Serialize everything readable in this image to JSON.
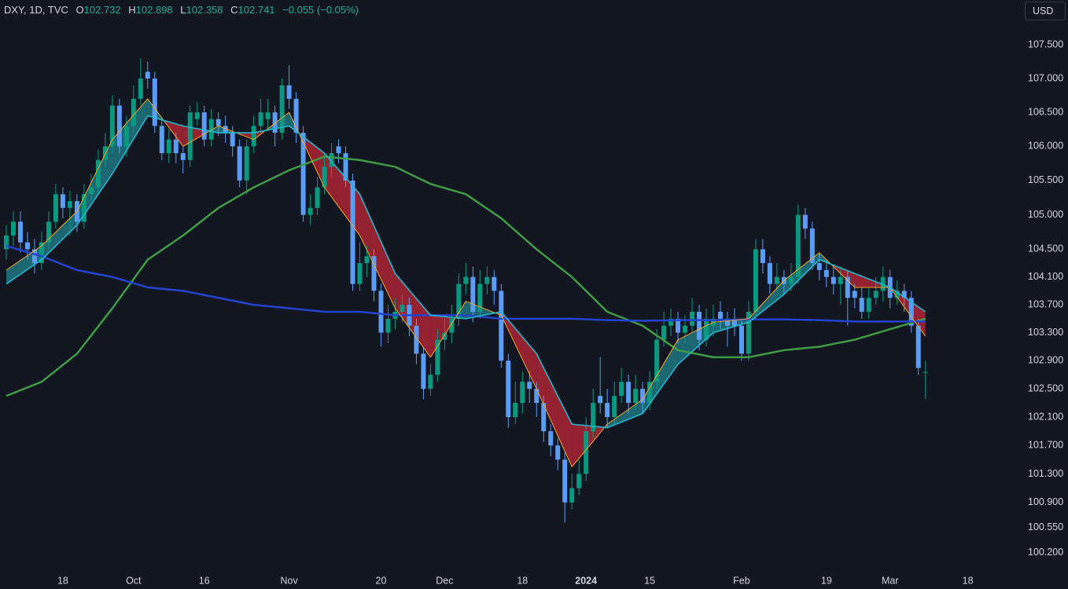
{
  "chart_data": {
    "type": "candlestick",
    "title": "DXY, 1D, TVC",
    "ohlc_labels": [
      "O",
      "H",
      "L",
      "C"
    ],
    "change_label": "−0.055 (−0.05%)",
    "currency": "USD",
    "log_scale": true,
    "grid": false,
    "up_color": "#089981",
    "down_color": "#5b9cf6",
    "ylim": [
      99.97,
      108.17
    ],
    "yticks": [
      {
        "value": 107.5,
        "label": "107.500"
      },
      {
        "value": 107.0,
        "label": "107.000"
      },
      {
        "value": 106.5,
        "label": "106.500"
      },
      {
        "value": 106.0,
        "label": "106.000"
      },
      {
        "value": 105.5,
        "label": "105.500"
      },
      {
        "value": 105.0,
        "label": "105.000"
      },
      {
        "value": 104.5,
        "label": "104.500"
      },
      {
        "value": 104.1,
        "label": "104.100"
      },
      {
        "value": 103.7,
        "label": "103.700"
      },
      {
        "value": 103.3,
        "label": "103.300"
      },
      {
        "value": 102.9,
        "label": "102.900"
      },
      {
        "value": 102.5,
        "label": "102.500"
      },
      {
        "value": 102.1,
        "label": "102.100"
      },
      {
        "value": 101.7,
        "label": "101.700"
      },
      {
        "value": 101.3,
        "label": "101.300"
      },
      {
        "value": 100.9,
        "label": "100.900"
      },
      {
        "value": 100.55,
        "label": "100.550"
      },
      {
        "value": 100.2,
        "label": "100.200"
      }
    ],
    "xticks": [
      {
        "value": "2023-09-18",
        "label": "18"
      },
      {
        "value": "2023-10-02",
        "label": "Oct"
      },
      {
        "value": "2023-10-16",
        "label": "16"
      },
      {
        "value": "2023-11-01",
        "label": "Nov"
      },
      {
        "value": "2023-11-20",
        "label": "20"
      },
      {
        "value": "2023-12-01",
        "label": "Dec"
      },
      {
        "value": "2023-12-18",
        "label": "18"
      },
      {
        "value": "2024-01-02",
        "label": "2024"
      },
      {
        "value": "2024-01-15",
        "label": "15"
      },
      {
        "value": "2024-02-01",
        "label": "Feb"
      },
      {
        "value": "2024-02-19",
        "label": "19"
      },
      {
        "value": "2024-03-01",
        "label": "Mar"
      },
      {
        "value": "2024-03-18",
        "label": "18"
      }
    ],
    "x": [
      "2023-09-06",
      "2023-09-07",
      "2023-09-08",
      "2023-09-11",
      "2023-09-12",
      "2023-09-13",
      "2023-09-14",
      "2023-09-15",
      "2023-09-18",
      "2023-09-19",
      "2023-09-20",
      "2023-09-21",
      "2023-09-22",
      "2023-09-25",
      "2023-09-26",
      "2023-09-27",
      "2023-09-28",
      "2023-09-29",
      "2023-10-02",
      "2023-10-03",
      "2023-10-04",
      "2023-10-05",
      "2023-10-06",
      "2023-10-09",
      "2023-10-10",
      "2023-10-11",
      "2023-10-12",
      "2023-10-13",
      "2023-10-16",
      "2023-10-17",
      "2023-10-18",
      "2023-10-19",
      "2023-10-20",
      "2023-10-23",
      "2023-10-24",
      "2023-10-25",
      "2023-10-26",
      "2023-10-27",
      "2023-10-30",
      "2023-10-31",
      "2023-11-01",
      "2023-11-02",
      "2023-11-03",
      "2023-11-06",
      "2023-11-07",
      "2023-11-08",
      "2023-11-09",
      "2023-11-10",
      "2023-11-13",
      "2023-11-14",
      "2023-11-15",
      "2023-11-16",
      "2023-11-17",
      "2023-11-20",
      "2023-11-21",
      "2023-11-22",
      "2023-11-23",
      "2023-11-24",
      "2023-11-27",
      "2023-11-28",
      "2023-11-29",
      "2023-11-30",
      "2023-12-01",
      "2023-12-04",
      "2023-12-05",
      "2023-12-06",
      "2023-12-07",
      "2023-12-08",
      "2023-12-11",
      "2023-12-12",
      "2023-12-13",
      "2023-12-14",
      "2023-12-15",
      "2023-12-18",
      "2023-12-19",
      "2023-12-20",
      "2023-12-21",
      "2023-12-22",
      "2023-12-26",
      "2023-12-27",
      "2023-12-28",
      "2023-12-29",
      "2024-01-02",
      "2024-01-03",
      "2024-01-04",
      "2024-01-05",
      "2024-01-08",
      "2024-01-09",
      "2024-01-10",
      "2024-01-11",
      "2024-01-12",
      "2024-01-15",
      "2024-01-16",
      "2024-01-17",
      "2024-01-18",
      "2024-01-19",
      "2024-01-22",
      "2024-01-23",
      "2024-01-24",
      "2024-01-25",
      "2024-01-26",
      "2024-01-29",
      "2024-01-30",
      "2024-01-31",
      "2024-02-01",
      "2024-02-02",
      "2024-02-05",
      "2024-02-06",
      "2024-02-07",
      "2024-02-08",
      "2024-02-09",
      "2024-02-12",
      "2024-02-13",
      "2024-02-14",
      "2024-02-15",
      "2024-02-16",
      "2024-02-19",
      "2024-02-20",
      "2024-02-21",
      "2024-02-22",
      "2024-02-23",
      "2024-02-26",
      "2024-02-27",
      "2024-02-28",
      "2024-02-29",
      "2024-03-01",
      "2024-03-04",
      "2024-03-05",
      "2024-03-06",
      "2024-03-07",
      "2024-03-08"
    ],
    "open": [
      104.5,
      104.7,
      104.9,
      104.6,
      104.5,
      104.3,
      104.6,
      104.9,
      105.3,
      105.1,
      105.2,
      104.9,
      105.3,
      105.4,
      105.8,
      106.0,
      106.6,
      106.0,
      106.3,
      106.7,
      107.1,
      107.0,
      106.3,
      105.9,
      106.1,
      105.9,
      105.8,
      106.4,
      106.5,
      106.1,
      106.4,
      106.3,
      106.2,
      106.0,
      105.5,
      106.0,
      106.3,
      106.4,
      106.5,
      106.2,
      106.9,
      106.7,
      106.2,
      105.0,
      105.1,
      105.4,
      105.7,
      106.0,
      105.9,
      105.5,
      104.0,
      104.3,
      104.4,
      103.9,
      103.3,
      103.5,
      103.6,
      103.7,
      103.4,
      103.0,
      102.5,
      102.7,
      103.2,
      103.3,
      103.5,
      104.0,
      104.1,
      103.6,
      104.0,
      104.1,
      103.9,
      102.9,
      102.1,
      102.3,
      102.6,
      102.5,
      102.3,
      101.9,
      101.7,
      101.5,
      100.9,
      101.1,
      101.3,
      101.9,
      102.4,
      102.3,
      102.1,
      102.4,
      102.6,
      102.3,
      102.5,
      102.3,
      102.6,
      103.2,
      103.4,
      103.5,
      103.3,
      103.4,
      103.6,
      103.2,
      103.4,
      103.6,
      103.5,
      103.5,
      103.4,
      103.0,
      103.6,
      104.5,
      104.3,
      104.0,
      104.1,
      104.0,
      104.1,
      105.0,
      104.8,
      104.3,
      104.2,
      104.1,
      104.0,
      104.1,
      103.9,
      103.8,
      103.6,
      103.8,
      103.9,
      104.1,
      103.8,
      103.9,
      103.8,
      103.4,
      102.732
    ],
    "high": [
      104.85,
      105.05,
      105.05,
      104.75,
      104.65,
      104.75,
      105.05,
      105.45,
      105.4,
      105.35,
      105.3,
      105.45,
      105.6,
      105.95,
      106.2,
      106.75,
      106.7,
      106.45,
      106.9,
      107.3,
      107.25,
      107.1,
      106.4,
      106.25,
      106.2,
      106.0,
      106.6,
      106.65,
      106.6,
      106.55,
      106.5,
      106.45,
      106.3,
      106.1,
      106.1,
      106.45,
      106.7,
      106.7,
      106.6,
      107.0,
      107.2,
      106.8,
      106.3,
      105.3,
      105.55,
      105.9,
      106.05,
      106.1,
      106.0,
      105.6,
      104.6,
      104.55,
      104.5,
      104.0,
      103.7,
      103.8,
      103.85,
      103.8,
      103.5,
      103.1,
      102.85,
      103.35,
      103.5,
      103.7,
      104.15,
      104.3,
      104.25,
      104.2,
      104.25,
      104.2,
      104.0,
      103.0,
      102.6,
      102.75,
      102.75,
      102.6,
      102.4,
      102.0,
      101.8,
      101.6,
      101.3,
      101.5,
      102.1,
      102.5,
      102.95,
      102.5,
      102.6,
      102.8,
      102.7,
      102.7,
      102.6,
      102.75,
      103.35,
      103.6,
      103.65,
      103.6,
      103.55,
      103.8,
      103.7,
      103.65,
      103.7,
      103.75,
      103.6,
      103.65,
      103.5,
      103.75,
      104.65,
      104.65,
      104.4,
      104.3,
      104.2,
      104.3,
      105.15,
      105.1,
      104.9,
      104.45,
      104.35,
      104.25,
      104.25,
      104.2,
      104.0,
      103.95,
      103.95,
      104.1,
      104.25,
      104.2,
      104.05,
      104.0,
      103.9,
      103.5,
      102.898
    ],
    "low": [
      104.35,
      104.55,
      104.45,
      104.35,
      104.15,
      104.2,
      104.5,
      104.8,
      104.95,
      104.7,
      104.75,
      104.8,
      105.2,
      105.3,
      105.7,
      105.9,
      105.9,
      105.85,
      106.2,
      106.6,
      106.85,
      106.2,
      105.8,
      105.75,
      105.75,
      105.6,
      105.7,
      106.3,
      106.0,
      106.0,
      106.15,
      106.05,
      105.85,
      105.4,
      105.3,
      105.9,
      106.2,
      106.25,
      106.0,
      106.1,
      106.55,
      106.05,
      104.9,
      104.85,
      105.0,
      105.3,
      105.55,
      105.75,
      105.4,
      103.9,
      103.9,
      104.1,
      103.75,
      103.1,
      103.15,
      103.35,
      103.45,
      103.25,
      102.85,
      102.35,
      102.4,
      102.6,
      103.05,
      103.15,
      103.4,
      103.85,
      103.45,
      103.5,
      103.85,
      103.7,
      102.8,
      101.95,
      102.0,
      102.15,
      102.3,
      102.1,
      101.75,
      101.55,
      101.35,
      100.62,
      100.8,
      101.0,
      101.2,
      101.8,
      102.15,
      101.95,
      102.0,
      102.3,
      102.15,
      102.2,
      102.15,
      102.2,
      102.5,
      103.1,
      103.25,
      103.15,
      103.15,
      103.3,
      103.05,
      103.1,
      103.25,
      103.35,
      103.1,
      103.25,
      102.9,
      102.9,
      103.5,
      104.15,
      103.85,
      103.9,
      103.85,
      103.9,
      104.0,
      104.65,
      104.2,
      104.05,
      103.95,
      103.85,
      103.7,
      103.4,
      103.65,
      103.5,
      103.5,
      103.7,
      103.75,
      103.65,
      103.7,
      103.6,
      103.3,
      102.7,
      102.358
    ],
    "close": [
      104.7,
      104.9,
      104.6,
      104.5,
      104.3,
      104.6,
      104.9,
      105.3,
      105.1,
      105.2,
      104.9,
      105.3,
      105.4,
      105.8,
      106.0,
      106.6,
      106.0,
      106.3,
      106.7,
      107.0,
      107.0,
      106.3,
      105.9,
      106.1,
      105.9,
      105.8,
      106.5,
      106.5,
      106.1,
      106.4,
      106.3,
      106.2,
      106.0,
      105.5,
      106.0,
      106.3,
      106.5,
      106.5,
      106.2,
      106.9,
      106.7,
      106.2,
      105.0,
      105.1,
      105.4,
      105.7,
      105.9,
      105.9,
      105.5,
      104.0,
      104.3,
      104.4,
      103.9,
      103.3,
      103.5,
      103.6,
      103.7,
      103.4,
      103.0,
      102.5,
      102.7,
      103.2,
      103.3,
      103.5,
      104.0,
      104.1,
      103.6,
      104.0,
      104.1,
      103.9,
      102.9,
      102.1,
      102.3,
      102.6,
      102.5,
      102.3,
      101.9,
      101.7,
      101.5,
      100.9,
      101.1,
      101.3,
      101.9,
      102.3,
      102.3,
      102.1,
      102.4,
      102.6,
      102.3,
      102.5,
      102.3,
      102.6,
      103.2,
      103.4,
      103.5,
      103.3,
      103.4,
      103.6,
      103.2,
      103.5,
      103.5,
      103.5,
      103.4,
      103.4,
      103.0,
      103.6,
      104.5,
      104.3,
      104.0,
      104.1,
      104.0,
      104.1,
      105.0,
      104.8,
      104.3,
      104.2,
      104.1,
      104.0,
      104.1,
      103.8,
      103.8,
      103.6,
      103.8,
      103.9,
      104.1,
      103.8,
      103.9,
      103.8,
      103.4,
      102.796,
      102.741
    ],
    "overlay_x": [
      "2023-09-06",
      "2023-09-13",
      "2023-09-20",
      "2023-09-27",
      "2023-10-04",
      "2023-10-11",
      "2023-10-18",
      "2023-10-25",
      "2023-11-01",
      "2023-11-08",
      "2023-11-15",
      "2023-11-22",
      "2023-11-29",
      "2023-12-06",
      "2023-12-13",
      "2023-12-20",
      "2023-12-28",
      "2024-01-05",
      "2024-01-12",
      "2024-01-19",
      "2024-01-26",
      "2024-02-02",
      "2024-02-09",
      "2024-02-16",
      "2024-02-23",
      "2024-03-01",
      "2024-03-08"
    ],
    "ribbon_colors": {
      "up": "rgba(38,170,180,0.55)",
      "down": "rgba(178,36,52,0.82)"
    },
    "overlays": [
      {
        "color": "#3f9c45",
        "width": 2.5,
        "values": [
          102.4,
          102.6,
          103.0,
          103.65,
          104.35,
          104.7,
          105.1,
          105.4,
          105.65,
          105.85,
          105.8,
          105.7,
          105.45,
          105.3,
          104.95,
          104.5,
          104.1,
          103.6,
          103.4,
          103.05,
          102.95,
          102.95,
          103.05,
          103.1,
          103.2,
          103.35,
          103.5
        ]
      },
      {
        "color": "#2443d0",
        "width": 2.5,
        "values": [
          104.55,
          104.4,
          104.2,
          104.1,
          103.95,
          103.9,
          103.8,
          103.7,
          103.65,
          103.6,
          103.6,
          103.55,
          103.55,
          103.55,
          103.5,
          103.5,
          103.5,
          103.48,
          103.47,
          103.48,
          103.48,
          103.49,
          103.49,
          103.48,
          103.46,
          103.46,
          103.46
        ]
      },
      {
        "color": "#f5a623",
        "width": 1,
        "values": [
          104.2,
          104.55,
          105.05,
          106.1,
          106.7,
          106.0,
          106.3,
          106.1,
          106.5,
          105.4,
          104.7,
          103.65,
          102.95,
          103.75,
          103.55,
          102.5,
          101.4,
          102.0,
          102.35,
          103.2,
          103.45,
          103.5,
          104.05,
          104.45,
          103.95,
          103.95,
          103.25
        ]
      },
      {
        "color": "#22b8cf",
        "width": 1.6,
        "values": [
          104.0,
          104.35,
          104.85,
          105.6,
          106.45,
          106.3,
          106.2,
          106.2,
          106.3,
          105.9,
          105.3,
          104.15,
          103.55,
          103.5,
          103.6,
          103.0,
          102.0,
          101.95,
          102.15,
          102.85,
          103.3,
          103.45,
          103.85,
          104.35,
          104.15,
          103.95,
          103.6
        ]
      }
    ]
  }
}
